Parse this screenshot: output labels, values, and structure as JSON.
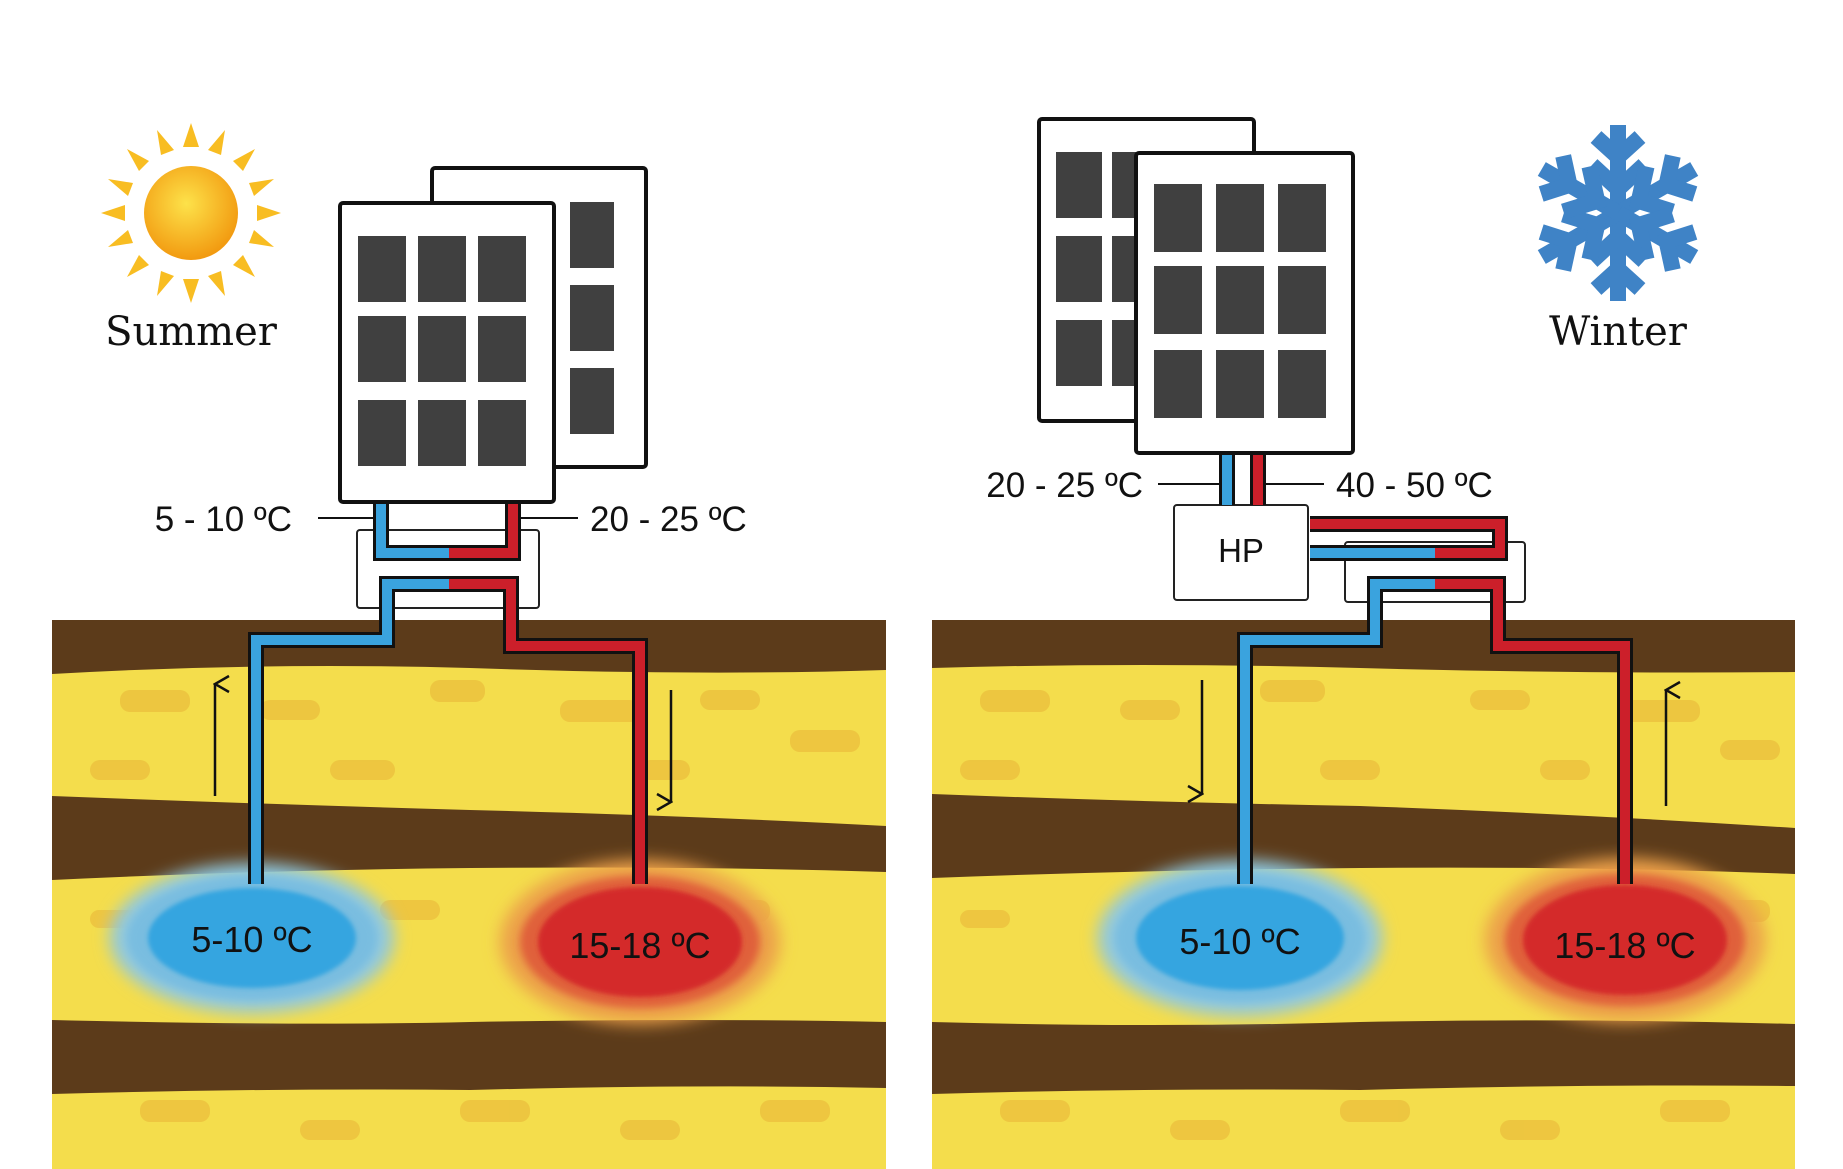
{
  "summer": {
    "season_label": "Summer",
    "panel_cold_temp": "5 - 10 ºC",
    "panel_hot_temp": "20 - 25 ºC",
    "cold_reservoir_temp": "5-10 ºC",
    "warm_reservoir_temp": "15-18 ºC",
    "icon": "sun-icon"
  },
  "winter": {
    "season_label": "Winter",
    "heat_pump_label": "HP",
    "panel_cold_temp": "20 - 25 ºC",
    "panel_hot_temp": "40 - 50 ºC",
    "cold_reservoir_temp": "5-10 ºC",
    "warm_reservoir_temp": "15-18 ºC",
    "icon": "snowflake-icon"
  },
  "colors": {
    "cold_pipe": "#3aa3de",
    "hot_pipe": "#cc1f2a",
    "soil_dark": "#5c3b1a",
    "soil_light": "#f4dd4c",
    "cold_reservoir": "#35a5e0",
    "warm_reservoir": "#d42a2a",
    "sun": "#f7b21c",
    "snowflake": "#3f83c6"
  }
}
